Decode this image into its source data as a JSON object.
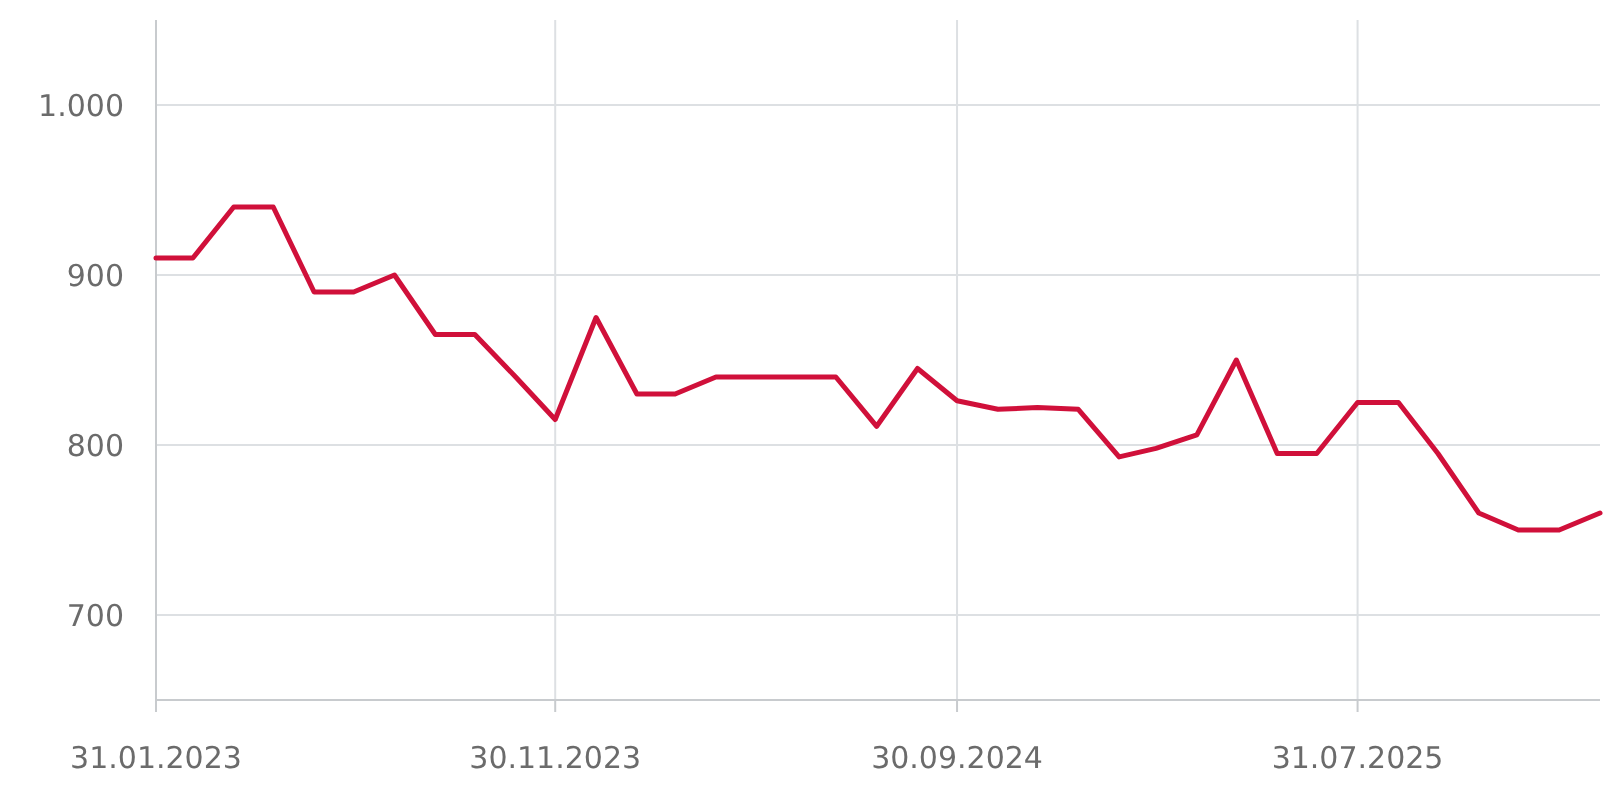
{
  "chart_data": {
    "type": "line",
    "x": [
      "2023-01-31",
      "2023-02-28",
      "2023-03-31",
      "2023-04-30",
      "2023-05-31",
      "2023-06-30",
      "2023-07-31",
      "2023-08-31",
      "2023-09-30",
      "2023-10-31",
      "2023-11-30",
      "2023-12-31",
      "2024-01-31",
      "2024-02-29",
      "2024-03-31",
      "2024-04-30",
      "2024-05-31",
      "2024-06-30",
      "2024-07-31",
      "2024-08-31",
      "2024-09-30",
      "2024-10-31",
      "2024-11-30",
      "2024-12-31",
      "2025-01-31",
      "2025-02-28",
      "2025-03-31",
      "2025-04-30",
      "2025-05-31",
      "2025-06-30",
      "2025-07-31",
      "2025-08-31",
      "2025-09-30",
      "2025-10-31",
      "2025-11-30",
      "2025-12-31",
      "2026-01-31"
    ],
    "series": [
      {
        "color": "#d0103a",
        "values": [
          910,
          910,
          940,
          940,
          890,
          890,
          900,
          865,
          865,
          840,
          815,
          875,
          830,
          830,
          840,
          840,
          840,
          840,
          811,
          845,
          826,
          821,
          822,
          821,
          793,
          798,
          806,
          850,
          795,
          795,
          825,
          825,
          795,
          760,
          750,
          750,
          760
        ]
      }
    ],
    "xlim": [
      "2023-01-31",
      "2026-01-31"
    ],
    "xticks": [
      {
        "value": "2023-01-31",
        "label": "31.01.2023"
      },
      {
        "value": "2023-11-30",
        "label": "30.11.2023"
      },
      {
        "value": "2024-09-30",
        "label": "30.09.2024"
      },
      {
        "value": "2025-07-31",
        "label": "31.07.2025"
      }
    ],
    "ylim": [
      650,
      1050
    ],
    "yticks": [
      700,
      800,
      900,
      {
        "value": 1000,
        "label": "1.000"
      }
    ],
    "grid": true,
    "marker": "none",
    "line_style": "solid"
  }
}
